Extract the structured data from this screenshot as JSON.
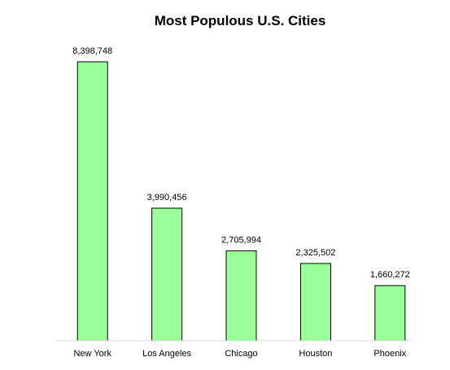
{
  "chart_data": {
    "type": "bar",
    "title": "Most Populous U.S. Cities",
    "xlabel": "",
    "ylabel": "",
    "categories": [
      "New York",
      "Los Angeles",
      "Chicago",
      "Houston",
      "Phoenix"
    ],
    "values": [
      8398748,
      3990456,
      2705994,
      2325502,
      1660272
    ],
    "data_labels": [
      "8,398,748",
      "3,990,456",
      "2,705,994",
      "2,325,502",
      "1,660,272"
    ],
    "ylim": [
      0,
      8398748
    ],
    "grid": false,
    "legend": "none",
    "colors": {
      "bar_fill": "#99ff99",
      "bar_stroke": "#000000",
      "axis": "#d9d9d9",
      "text": "#000000"
    }
  }
}
